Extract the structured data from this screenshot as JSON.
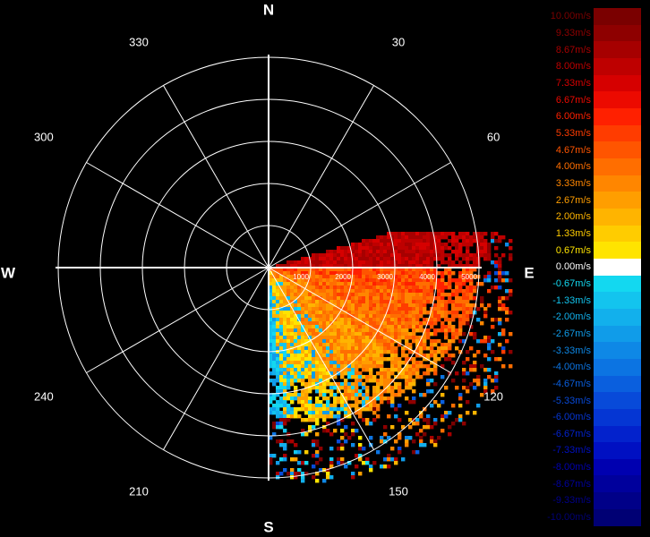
{
  "display": {
    "compass": {
      "north": "N",
      "east": "E",
      "south": "S",
      "west": "W"
    },
    "bearings": [
      "30",
      "60",
      "120",
      "150",
      "210",
      "240",
      "300",
      "330"
    ],
    "range_labels": [
      "1000",
      "2000",
      "3000",
      "4000",
      "5000"
    ],
    "range_max": 5000
  },
  "colorbar": {
    "entries": [
      {
        "label": "10.00m/s",
        "color": "#7a0000",
        "value": 10.0
      },
      {
        "label": "9.33m/s",
        "color": "#8e0000",
        "value": 9.33
      },
      {
        "label": "8.67m/s",
        "color": "#a60000",
        "value": 8.67
      },
      {
        "label": "8.00m/s",
        "color": "#be0000",
        "value": 8.0
      },
      {
        "label": "7.33m/s",
        "color": "#d60000",
        "value": 7.33
      },
      {
        "label": "6.67m/s",
        "color": "#ec0a00",
        "value": 6.67
      },
      {
        "label": "6.00m/s",
        "color": "#ff2000",
        "value": 6.0
      },
      {
        "label": "5.33m/s",
        "color": "#ff3c00",
        "value": 5.33
      },
      {
        "label": "4.67m/s",
        "color": "#ff5500",
        "value": 4.67
      },
      {
        "label": "4.00m/s",
        "color": "#ff6e00",
        "value": 4.0
      },
      {
        "label": "3.33m/s",
        "color": "#ff8600",
        "value": 3.33
      },
      {
        "label": "2.67m/s",
        "color": "#ff9e00",
        "value": 2.67
      },
      {
        "label": "2.00m/s",
        "color": "#ffb400",
        "value": 2.0
      },
      {
        "label": "1.33m/s",
        "color": "#ffcc00",
        "value": 1.33
      },
      {
        "label": "0.67m/s",
        "color": "#ffe400",
        "value": 0.67
      },
      {
        "label": "0.00m/s",
        "color": "#ffffff",
        "value": 0.0
      },
      {
        "label": "-0.67m/s",
        "color": "#13d8f0",
        "value": -0.67
      },
      {
        "label": "-1.33m/s",
        "color": "#13c4ee",
        "value": -1.33
      },
      {
        "label": "-2.00m/s",
        "color": "#12b0ec",
        "value": -2.0
      },
      {
        "label": "-2.67m/s",
        "color": "#109ce9",
        "value": -2.67
      },
      {
        "label": "-3.33m/s",
        "color": "#0e88e6",
        "value": -3.33
      },
      {
        "label": "-4.00m/s",
        "color": "#0c74e2",
        "value": -4.0
      },
      {
        "label": "-4.67m/s",
        "color": "#0a5fde",
        "value": -4.67
      },
      {
        "label": "-5.33m/s",
        "color": "#084ad9",
        "value": -5.33
      },
      {
        "label": "-6.00m/s",
        "color": "#0536d3",
        "value": -6.0
      },
      {
        "label": "-6.67m/s",
        "color": "#0322cc",
        "value": -6.67
      },
      {
        "label": "-7.33m/s",
        "color": "#0010c2",
        "value": -7.33
      },
      {
        "label": "-8.00m/s",
        "color": "#0000b0",
        "value": -8.0
      },
      {
        "label": "-8.67m/s",
        "color": "#00009c",
        "value": -8.67
      },
      {
        "label": "-9.33m/s",
        "color": "#000088",
        "value": -9.33
      },
      {
        "label": "-10.00m/s",
        "color": "#000074",
        "value": -10.0
      }
    ]
  },
  "colors": {
    "background": "#000000",
    "grid": "#ffffff",
    "text": "#ffffff"
  }
}
